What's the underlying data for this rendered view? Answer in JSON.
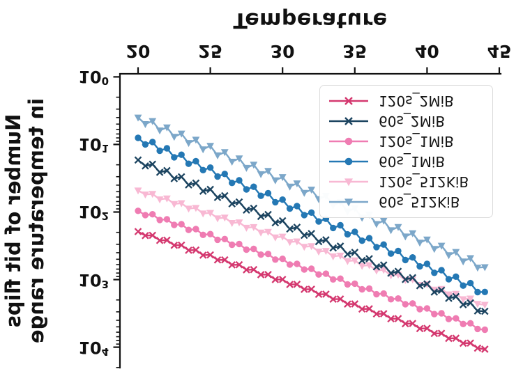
{
  "figure": {
    "xlabel": "Temperature",
    "ylabel_line1": "Number of bit flips",
    "ylabel_line2": "in temperature range",
    "x_tick_labels": [
      "20",
      "25",
      "30",
      "35",
      "40",
      "45"
    ],
    "y_tick_base": "10",
    "y_tick_exponents": [
      "0",
      "1",
      "2",
      "3",
      "4"
    ],
    "axis_color": "#111111",
    "background_color": "#ffffff",
    "orientation": "vertically-mirrored"
  },
  "legend": {
    "entries": [
      {
        "label": "60s_512KiB",
        "color": "#7ca7c9",
        "marker": "triangle"
      },
      {
        "label": "120s_512KiB",
        "color": "#f8b8d3",
        "marker": "triangle"
      },
      {
        "label": "60s_1MiB",
        "color": "#2478b4",
        "marker": "circle"
      },
      {
        "label": "120s_1MiB",
        "color": "#ef7cb2",
        "marker": "circle"
      },
      {
        "label": "60s_2MiB",
        "color": "#1c4460",
        "marker": "x"
      },
      {
        "label": "120s_2MiB",
        "color": "#d4386f",
        "marker": "x"
      }
    ]
  },
  "chart_data": {
    "type": "line",
    "title": "",
    "xlabel": "Temperature",
    "ylabel": "Number of bit flips in temperature range",
    "yscale": "log",
    "xlim": [
      18.7,
      45.15
    ],
    "ylim": [
      0.9,
      20000
    ],
    "grid": false,
    "legend_position": "lower right (appears upper right in mirrored image)",
    "x": [
      20,
      20.5,
      21,
      21.5,
      22,
      22.5,
      23,
      23.5,
      24,
      24.5,
      25,
      25.5,
      26,
      26.5,
      27,
      27.5,
      28,
      28.5,
      29,
      29.5,
      30,
      30.5,
      31,
      31.5,
      32,
      32.5,
      33,
      33.5,
      34,
      34.5,
      35,
      35.5,
      36,
      36.5,
      37,
      37.5,
      38,
      38.5,
      39,
      39.5,
      40,
      40.5,
      41,
      41.5,
      42,
      42.5,
      43,
      43.5,
      44
    ],
    "series": [
      {
        "name": "120s_512KiB",
        "color": "#f8b8d3",
        "marker": "triangle",
        "values": [
          48,
          55,
          54,
          65,
          63,
          76,
          74,
          89,
          87,
          105,
          103,
          124,
          121,
          145,
          142,
          171,
          167,
          201,
          196,
          237,
          231,
          278,
          272,
          327,
          320,
          385,
          376,
          453,
          442,
          532,
          520,
          626,
          611,
          736,
          719,
          866,
          846,
          1019,
          995,
          1198,
          1170,
          1410,
          1376,
          1657,
          1619,
          1950,
          1904,
          2293,
          2357
        ]
      },
      {
        "name": "120s_1MiB",
        "color": "#ef7cb2",
        "marker": "circle",
        "values": [
          96,
          111,
          108,
          131,
          128,
          155,
          151,
          184,
          179,
          218,
          212,
          258,
          251,
          305,
          297,
          361,
          352,
          427,
          417,
          506,
          493,
          599,
          584,
          709,
          692,
          840,
          819,
          994,
          969,
          1177,
          1148,
          1393,
          1359,
          1649,
          1608,
          1953,
          1904,
          2312,
          2254,
          2737,
          2669,
          3240,
          3160,
          3836,
          3741,
          4541,
          4429,
          5376,
          5519
        ]
      },
      {
        "name": "120s_2MiB",
        "color": "#d4386f",
        "marker": "x",
        "values": [
          195,
          223,
          221,
          263,
          261,
          311,
          309,
          368,
          365,
          434,
          431,
          512,
          510,
          606,
          602,
          716,
          711,
          846,
          841,
          1000,
          994,
          1181,
          1174,
          1395,
          1387,
          1650,
          1639,
          1949,
          1937,
          2303,
          2289,
          2722,
          2704,
          3215,
          3196,
          3800,
          3777,
          4490,
          4462,
          5306,
          5273,
          6270,
          6230,
          7408,
          7362,
          8753,
          8700,
          10344,
          10708
        ]
      },
      {
        "name": "60s_512KiB",
        "color": "#7ca7c9",
        "marker": "triangle",
        "values": [
          4,
          5,
          4.5,
          6.2,
          5.6,
          7.7,
          6.9,
          9.5,
          8.5,
          11.8,
          10.5,
          14.5,
          13,
          18,
          16.1,
          22.2,
          19.9,
          27.5,
          24.6,
          34,
          30.4,
          42,
          37.6,
          52,
          46.6,
          64.3,
          57.6,
          79.5,
          71.2,
          98.3,
          88,
          121.6,
          108.8,
          150.3,
          134.6,
          185.9,
          166.4,
          229.8,
          205.8,
          284.2,
          254.5,
          351.4,
          314.8,
          434.6,
          389.2,
          537.4,
          481.3,
          664.6,
          654
        ]
      },
      {
        "name": "60s_1MiB",
        "color": "#2478b4",
        "marker": "circle",
        "values": [
          8,
          10,
          9.2,
          12.4,
          11.4,
          15.5,
          14.2,
          19.3,
          17.7,
          24,
          22,
          29.8,
          27.3,
          37.1,
          34,
          46.2,
          42.3,
          57.5,
          52.7,
          71.6,
          65.6,
          89.1,
          81.6,
          111,
          102,
          138,
          126,
          172,
          157,
          214,
          196,
          266,
          244,
          331,
          303,
          412,
          377,
          513,
          470,
          638,
          584,
          794,
          727,
          988,
          905,
          1229,
          1126,
          1530,
          1523
        ]
      },
      {
        "name": "60s_2MiB",
        "color": "#1c4460",
        "marker": "x",
        "values": [
          17,
          20.8,
          19.6,
          25.8,
          24.3,
          32,
          30.1,
          39.7,
          37.3,
          49.2,
          46.3,
          60.9,
          57.4,
          75.5,
          71.1,
          93.6,
          88.1,
          116,
          109,
          144,
          135,
          178,
          168,
          221,
          208,
          274,
          258,
          340,
          320,
          421,
          396,
          522,
          491,
          647,
          609,
          802,
          755,
          994,
          936,
          1232,
          1160,
          1528,
          1438,
          1893,
          1783,
          2347,
          2210,
          2910,
          2945
        ]
      }
    ]
  }
}
